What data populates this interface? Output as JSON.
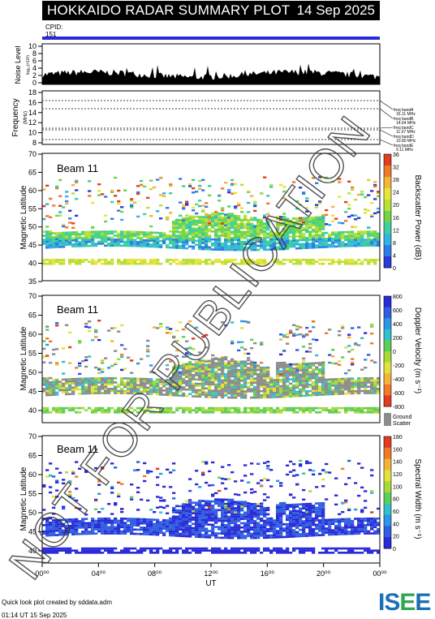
{
  "header": {
    "title": "HOKKAIDO RADAR SUMMARY PLOT",
    "date": "14 Sep 2025",
    "cpid_label": "CPID:",
    "cpid_value": "151"
  },
  "panels": {
    "noise": {
      "ylabel": "Noise Level",
      "yunit": "log₁₀(×10³)",
      "ticks": [
        "10",
        "8",
        "6",
        "4",
        "2",
        "0"
      ]
    },
    "frequency": {
      "ylabel": "Frequency",
      "yunit": "(MHz)",
      "ticks": [
        "18",
        "16",
        "14",
        "12",
        "10",
        "8"
      ],
      "bands": [
        {
          "label": "freq bandA",
          "value": "16.11 MHz"
        },
        {
          "label": "freq bandB",
          "value": "14.64 MHz"
        },
        {
          "label": "freq bandC",
          "value": "11.07 MHz"
        },
        {
          "label": "freq bandD",
          "value": "10.80 MHz"
        },
        {
          "label": "freq bandE",
          "value": "9.11 MHz"
        }
      ]
    },
    "power": {
      "beam": "Beam 11",
      "ylabel": "Magnetic Latitude",
      "ticks": [
        "70",
        "65",
        "60",
        "55",
        "50",
        "45",
        "40",
        "35"
      ],
      "cbar_label": "Backscatter Power (dB)",
      "cbar_ticks": [
        "36",
        "32",
        "28",
        "24",
        "20",
        "16",
        "12",
        "8",
        "4",
        "0"
      ]
    },
    "velocity": {
      "beam": "Beam 11",
      "ylabel": "Magnetic Latitude",
      "ticks": [
        "70",
        "65",
        "60",
        "55",
        "50",
        "45",
        "40"
      ],
      "cbar_label": "Doppler Velocity (m s⁻¹)",
      "cbar_ticks": [
        "800",
        "600",
        "400",
        "200",
        "0",
        "-200",
        "-400",
        "-600",
        "-800"
      ],
      "ground_label": "Ground",
      "ground_label2": "Scatter"
    },
    "width": {
      "beam": "Beam 11",
      "ylabel": "Magnetic Latitude",
      "ticks": [
        "70",
        "65",
        "60",
        "55",
        "50",
        "45",
        "40"
      ],
      "cbar_label": "Spectral Width (m s⁻¹)",
      "cbar_ticks": [
        "180",
        "160",
        "140",
        "120",
        "100",
        "80",
        "60",
        "40",
        "20",
        "0"
      ]
    }
  },
  "xaxis": {
    "label": "UT",
    "ticks": [
      "00⁰⁰",
      "04⁰⁰",
      "08⁰⁰",
      "12⁰⁰",
      "16⁰⁰",
      "20⁰⁰",
      "00⁰⁰"
    ]
  },
  "watermark": "NOT FOR PUBLICATION",
  "footer": {
    "credit": "Quick look plot created by sddata.adm",
    "created": "01:14 UT 15 Sep 2025"
  },
  "logo": {
    "text_a": "IS",
    "text_b": "E",
    "text_c": "E"
  },
  "colors": {
    "power_scale": [
      "#2a3bd8",
      "#2f7de8",
      "#33b4e0",
      "#3cd09a",
      "#6fd64a",
      "#b7e03a",
      "#e8e43a",
      "#f5b43a",
      "#f07a2a",
      "#e0401f"
    ],
    "ground_scatter": "#8c8c8c"
  },
  "chart_data": [
    {
      "type": "heatmap",
      "title": "Backscatter Power (dB)",
      "xlabel": "UT",
      "ylabel": "Magnetic Latitude",
      "x_range_hours": [
        0,
        24
      ],
      "ylim": [
        35,
        70
      ],
      "clim": [
        0,
        36
      ],
      "bands": [
        {
          "ut_start": 0,
          "ut_end": 24,
          "lat_lo": 44,
          "lat_hi": 49,
          "value": 30
        },
        {
          "ut_start": 9,
          "ut_end": 16,
          "lat_lo": 49,
          "lat_hi": 54,
          "value": 22
        },
        {
          "ut_start": 16.5,
          "ut_end": 20,
          "lat_lo": 46,
          "lat_hi": 60,
          "value": 18
        },
        {
          "ut_start": 0,
          "ut_end": 24,
          "lat_lo": 39.5,
          "lat_hi": 41,
          "value": 12
        }
      ]
    },
    {
      "type": "heatmap",
      "title": "Doppler Velocity",
      "xlabel": "UT",
      "ylabel": "Magnetic Latitude",
      "x_range_hours": [
        0,
        24
      ],
      "ylim": [
        37,
        70
      ],
      "clim": [
        -800,
        800
      ]
    },
    {
      "type": "heatmap",
      "title": "Spectral Width",
      "xlabel": "UT",
      "ylabel": "Magnetic Latitude",
      "x_range_hours": [
        0,
        24
      ],
      "ylim": [
        37,
        70
      ],
      "clim": [
        0,
        180
      ]
    }
  ]
}
